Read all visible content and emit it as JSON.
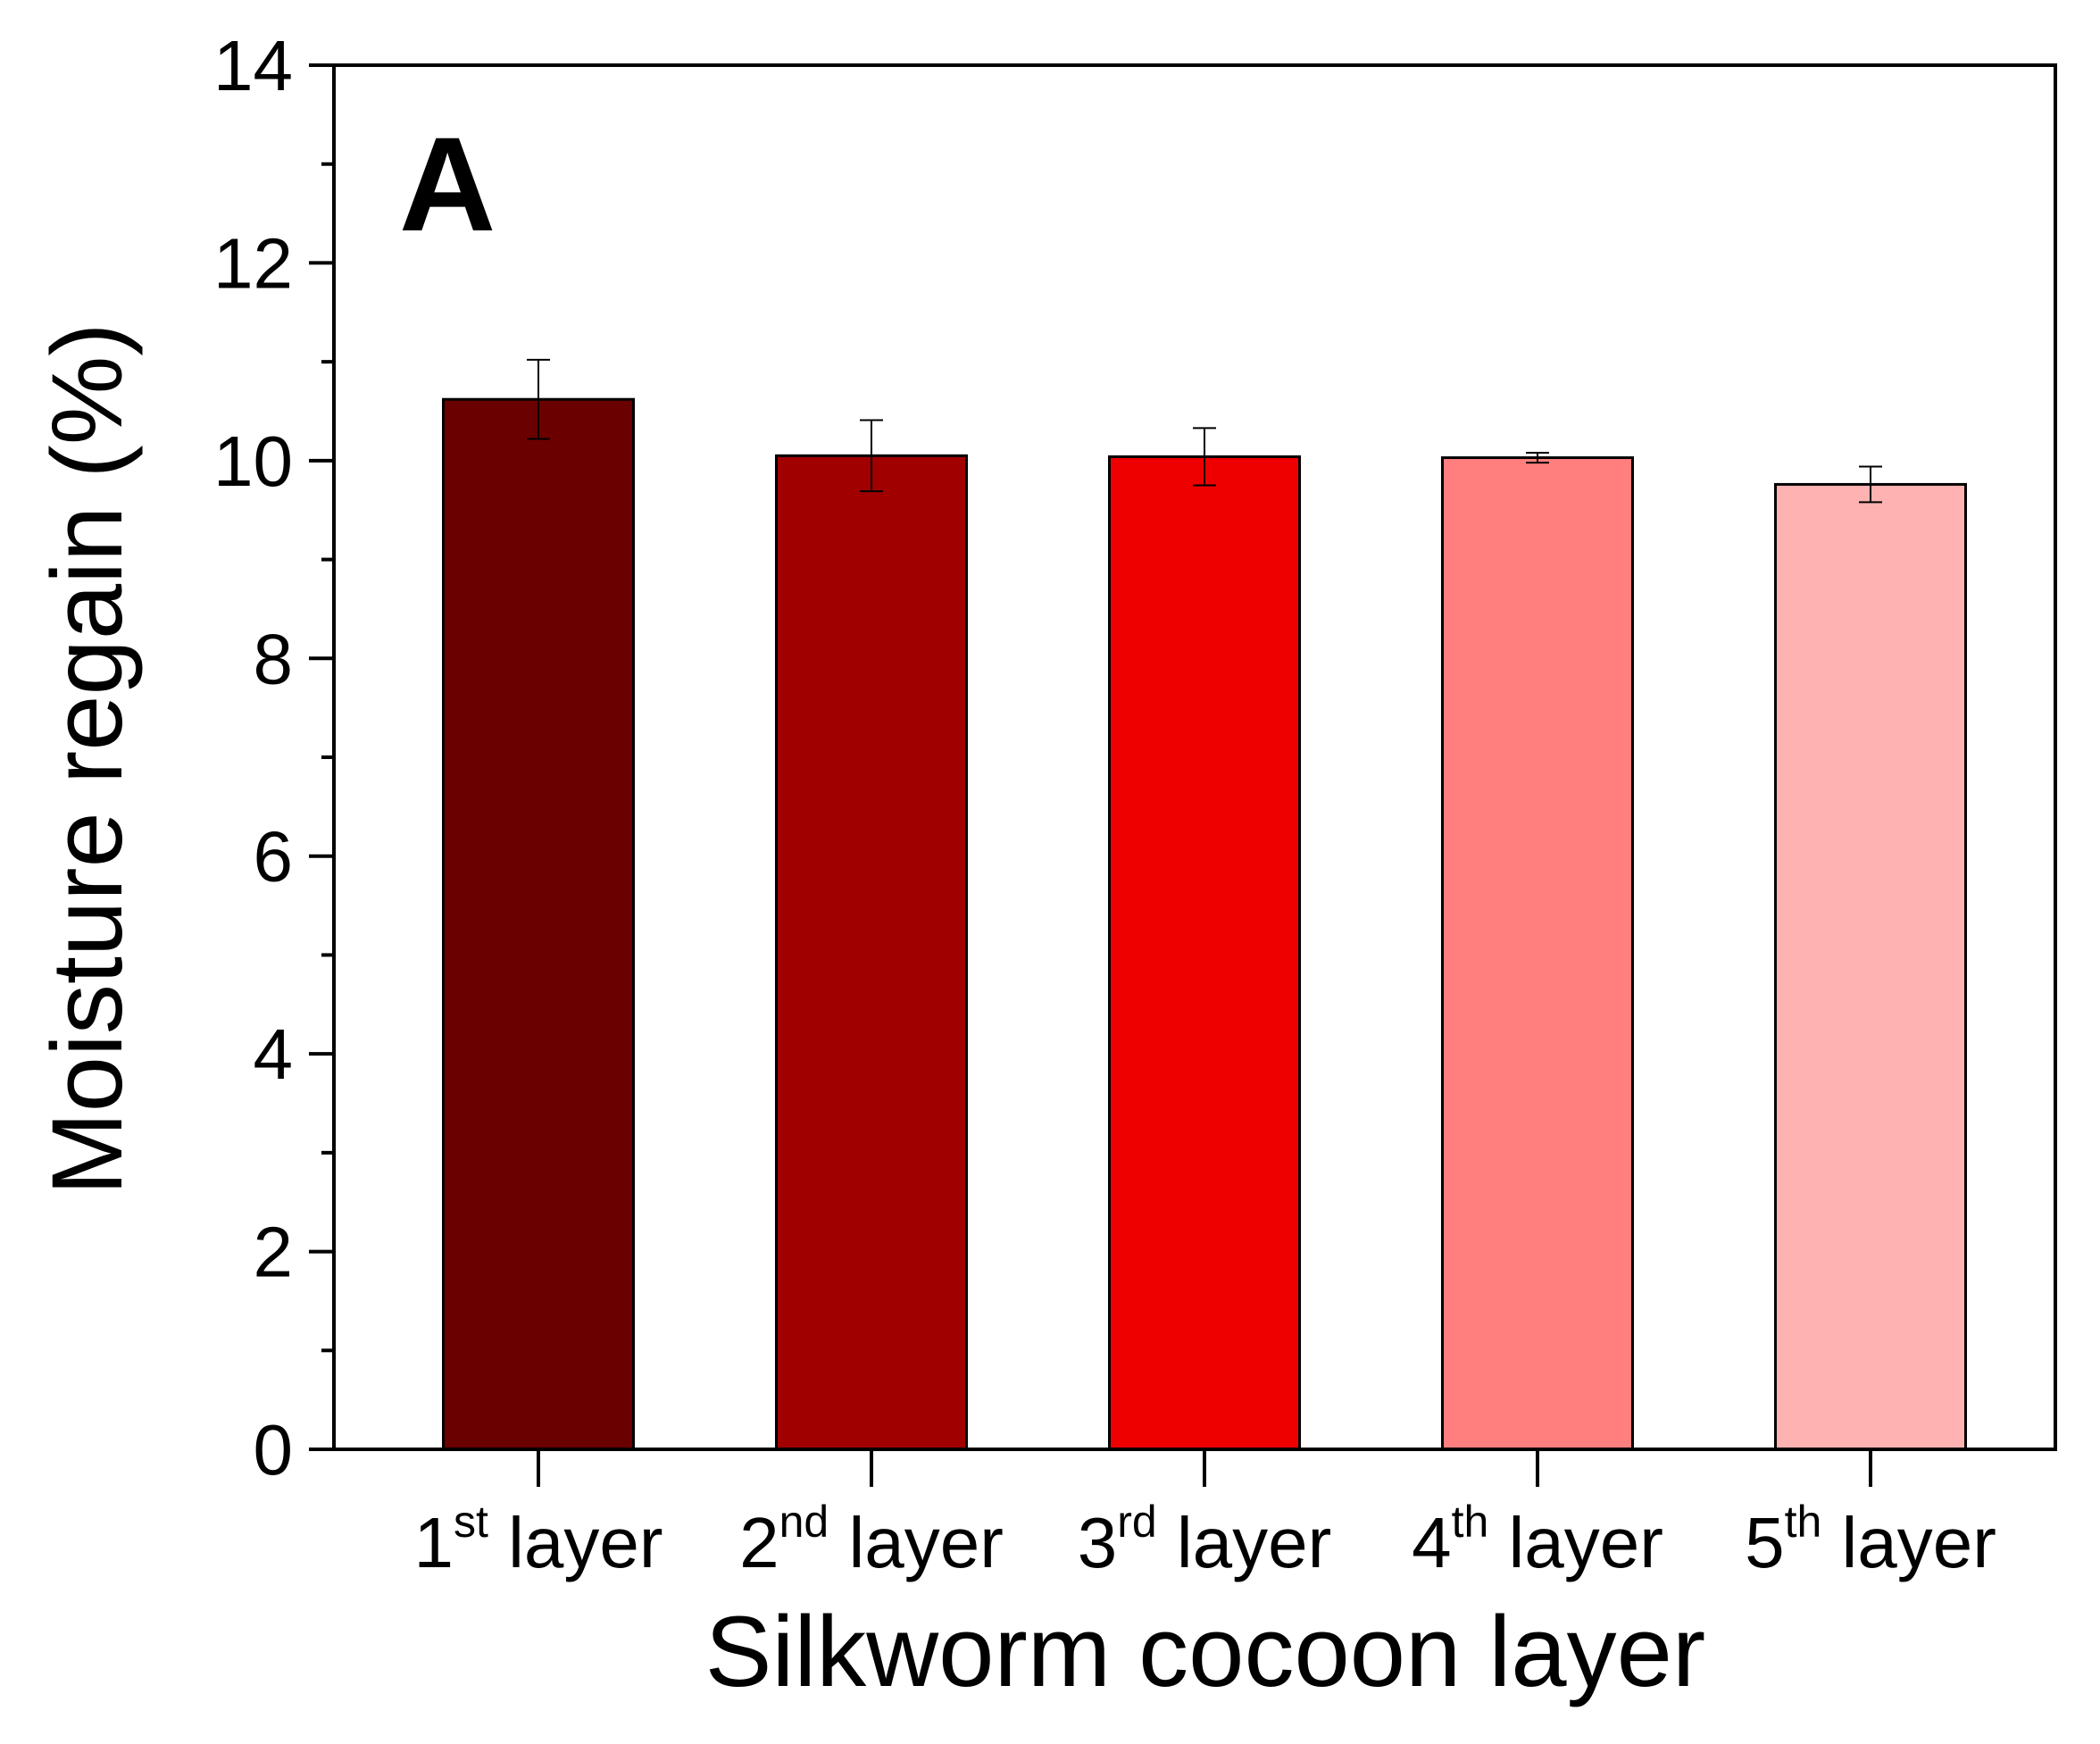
{
  "chart_data": {
    "type": "bar",
    "panel_label": "A",
    "xlabel": "Silkworm cocoon layer",
    "ylabel": "Moisture regain (%)",
    "ylim": [
      0,
      14
    ],
    "y_major_ticks": [
      0,
      2,
      4,
      6,
      8,
      10,
      12,
      14
    ],
    "y_tick_labels": [
      "0",
      "2",
      "4",
      "6",
      "8",
      "10",
      "12",
      "14"
    ],
    "y_minor_tick_step": 1,
    "categories": [
      {
        "num": "1",
        "sup": "st",
        "text": " layer"
      },
      {
        "num": "2",
        "sup": "nd",
        "text": " layer"
      },
      {
        "num": "3",
        "sup": "rd",
        "text": " layer"
      },
      {
        "num": "4",
        "sup": "th",
        "text": " layer"
      },
      {
        "num": "5",
        "sup": "th",
        "text": " layer"
      }
    ],
    "values": [
      10.62,
      10.05,
      10.04,
      10.03,
      9.76
    ],
    "errors": [
      0.4,
      0.36,
      0.29,
      0.05,
      0.18
    ],
    "colors": [
      "#6b0000",
      "#a10000",
      "#ee0000",
      "#ff7f7f",
      "#ffb2b2"
    ],
    "grid": false,
    "legend": "none"
  }
}
